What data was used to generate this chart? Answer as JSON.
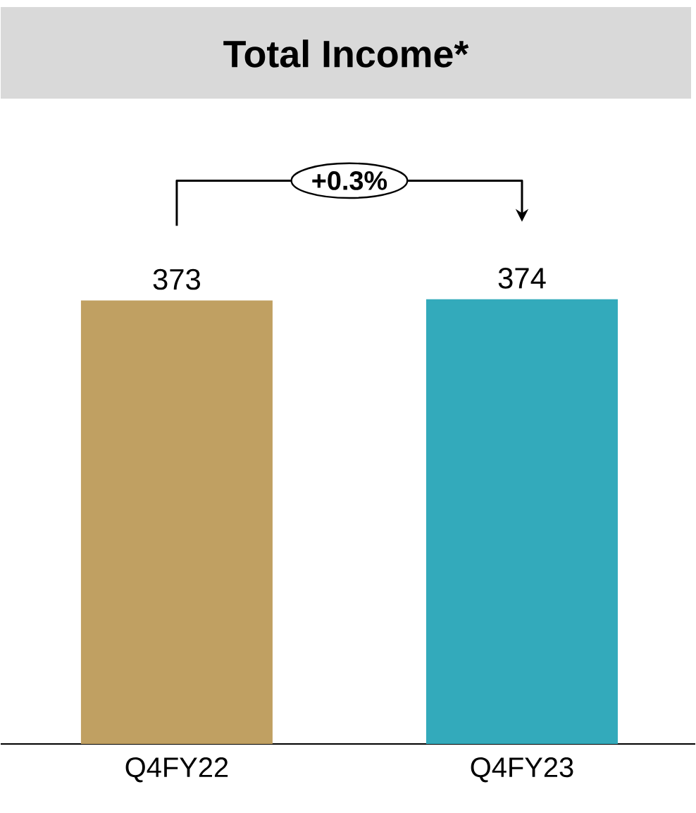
{
  "chart_data": {
    "type": "bar",
    "title": "Total Income*",
    "categories": [
      "Q4FY22",
      "Q4FY23"
    ],
    "values": [
      373,
      374
    ],
    "colors": [
      "#c0a062",
      "#33aabb"
    ],
    "data_labels": true,
    "annotations": [
      "+0.3%"
    ]
  }
}
